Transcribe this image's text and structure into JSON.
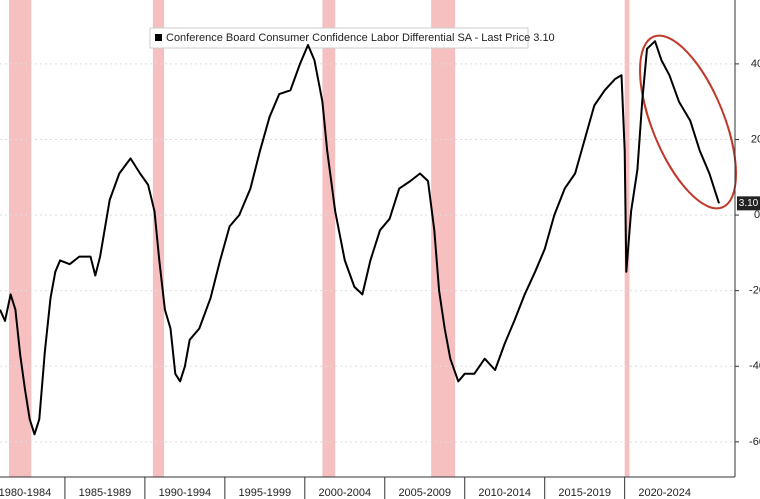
{
  "chart_data": {
    "type": "line",
    "series": [
      {
        "name": "Conference Board Consumer Confidence Labor Differential SA - Last Price 3.10",
        "color": "#000000",
        "x": [
          1980.94,
          1981.25,
          1981.6,
          1981.9,
          1982.2,
          1982.5,
          1982.8,
          1983.1,
          1983.4,
          1983.75,
          1984.1,
          1984.4,
          1984.7,
          1985.3,
          1985.9,
          1986.6,
          1986.9,
          1987.2,
          1987.8,
          1988.4,
          1989.1,
          1989.7,
          1990.2,
          1990.6,
          1990.9,
          1991.25,
          1991.6,
          1991.9,
          1992.2,
          1992.5,
          1992.8,
          1993.4,
          1994.1,
          1994.7,
          1995.3,
          1995.9,
          1996.6,
          1997.2,
          1997.8,
          1998.4,
          1999.1,
          1999.7,
          2000.2,
          2000.6,
          2001.1,
          2001.4,
          2001.9,
          2002.5,
          2003.1,
          2003.6,
          2004.1,
          2004.7,
          2005.3,
          2005.9,
          2006.6,
          2007.2,
          2007.7,
          2008.1,
          2008.4,
          2008.75,
          2009.1,
          2009.6,
          2010.0,
          2010.6,
          2011.25,
          2011.9,
          2012.5,
          2013.1,
          2013.75,
          2014.4,
          2015.0,
          2015.6,
          2016.25,
          2016.9,
          2017.5,
          2018.1,
          2018.75,
          2019.4,
          2019.8,
          2020.0,
          2020.1,
          2020.4,
          2020.8,
          2021.1,
          2021.4,
          2021.9,
          2022.3,
          2022.8,
          2023.4,
          2024.1,
          2024.7,
          2025.3,
          2025.9
        ],
        "values": [
          -25,
          -28,
          -21,
          -25,
          -37,
          -46,
          -54,
          -58,
          -54,
          -36,
          -22,
          -15,
          -12,
          -13,
          -11,
          -11,
          -16,
          -11,
          4,
          11,
          15,
          11,
          8,
          1,
          -12,
          -25,
          -30,
          -42,
          -44,
          -40,
          -33,
          -30,
          -22,
          -12,
          -3,
          0,
          7,
          17,
          26,
          32,
          33,
          40,
          45,
          41,
          30,
          17,
          1,
          -12,
          -19,
          -21,
          -12,
          -4,
          -1,
          7,
          9,
          11,
          9,
          -4,
          -20,
          -30,
          -38,
          -44,
          -42,
          -42,
          -38,
          -41,
          -34,
          -28,
          -21,
          -15,
          -9,
          0,
          7,
          11,
          20,
          29,
          33,
          36,
          37,
          17,
          -15,
          1,
          12,
          30,
          44,
          46,
          41,
          37,
          30,
          25,
          17,
          11,
          3.1
        ]
      }
    ],
    "recessions": [
      [
        1981.5,
        1982.9
      ],
      [
        1990.5,
        1991.2
      ],
      [
        2001.1,
        2001.9
      ],
      [
        2007.9,
        2009.4
      ],
      [
        2020.0,
        2020.3
      ]
    ],
    "recession_color": "#f6c0c0",
    "last_price": {
      "value": 3.1,
      "label": "3.10"
    },
    "xlim": [
      1980.94,
      2026.9
    ],
    "xticks": [
      {
        "value": 1982.5,
        "label": "1980-1984"
      },
      {
        "value": 1987.5,
        "label": "1985-1989"
      },
      {
        "value": 1992.5,
        "label": "1990-1994"
      },
      {
        "value": 1997.5,
        "label": "1995-1999"
      },
      {
        "value": 2002.5,
        "label": "2000-2004"
      },
      {
        "value": 2007.5,
        "label": "2005-2009"
      },
      {
        "value": 2012.5,
        "label": "2010-2014"
      },
      {
        "value": 2017.5,
        "label": "2015-2019"
      },
      {
        "value": 2022.5,
        "label": "2020-2024"
      }
    ],
    "ylim": [
      -69.3,
      56.9
    ],
    "yticks": [
      -60,
      -40,
      -20,
      0,
      20,
      40
    ],
    "grid": true
  }
}
